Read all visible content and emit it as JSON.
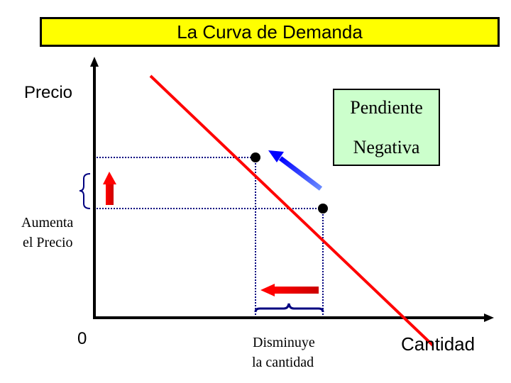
{
  "title": "La Curva de Demanda",
  "y_axis_label": "Precio",
  "x_axis_label": "Cantidad",
  "origin_label": "0",
  "callout": {
    "line1": "Pendiente",
    "line2": "Negativa"
  },
  "price_annotation": {
    "line1": "Aumenta",
    "line2": "el Precio"
  },
  "quantity_annotation": {
    "line1": "Disminuye",
    "line2": "la cantidad"
  },
  "colors": {
    "title_bg": "#ffff00",
    "callout_bg": "#ccffcc",
    "demand_line": "#ff0000",
    "slope_arrow": "#0000ff",
    "change_arrows": "#ff0000",
    "guides": "#000080"
  }
}
